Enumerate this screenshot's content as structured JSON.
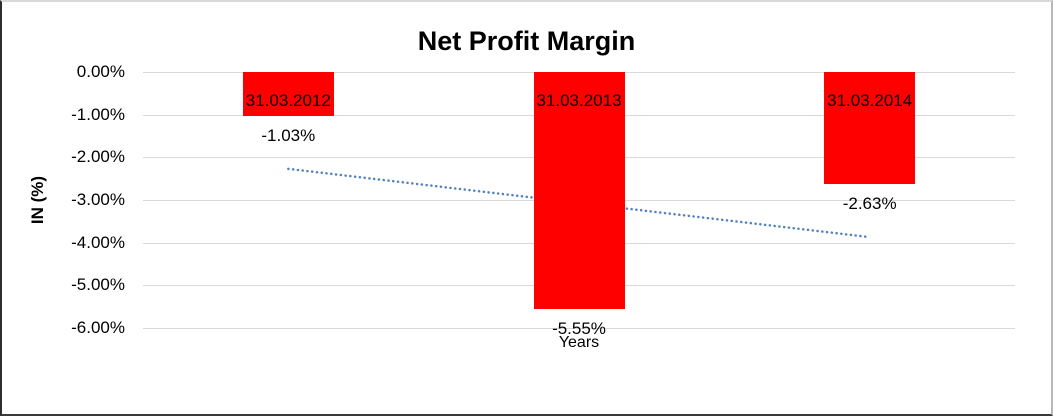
{
  "chart_data": {
    "type": "bar",
    "title": "Net Profit Margin",
    "xlabel": "Years",
    "ylabel": "IN (%)",
    "categories": [
      "31.03.2012",
      "31.03.2013",
      "31.03.2014"
    ],
    "values": [
      -1.03,
      -5.55,
      -2.63
    ],
    "data_labels": [
      "-1.03%",
      "-5.55%",
      "-2.63%"
    ],
    "yticks": [
      "0.00%",
      "-1.00%",
      "-2.00%",
      "-3.00%",
      "-4.00%",
      "-5.00%",
      "-6.00%"
    ],
    "ytick_values": [
      0,
      -1,
      -2,
      -3,
      -4,
      -5,
      -6
    ],
    "ylim": [
      -6,
      0
    ],
    "bar_color": "#ff0000",
    "gridline_color": "#d9d9d9",
    "text_color": "#000000",
    "grid": "horizontal",
    "legend_position": "none",
    "trendline": {
      "type": "linear",
      "style": "dotted",
      "color": "#4f81bd",
      "start_value": -2.27,
      "end_value": -3.87
    }
  }
}
